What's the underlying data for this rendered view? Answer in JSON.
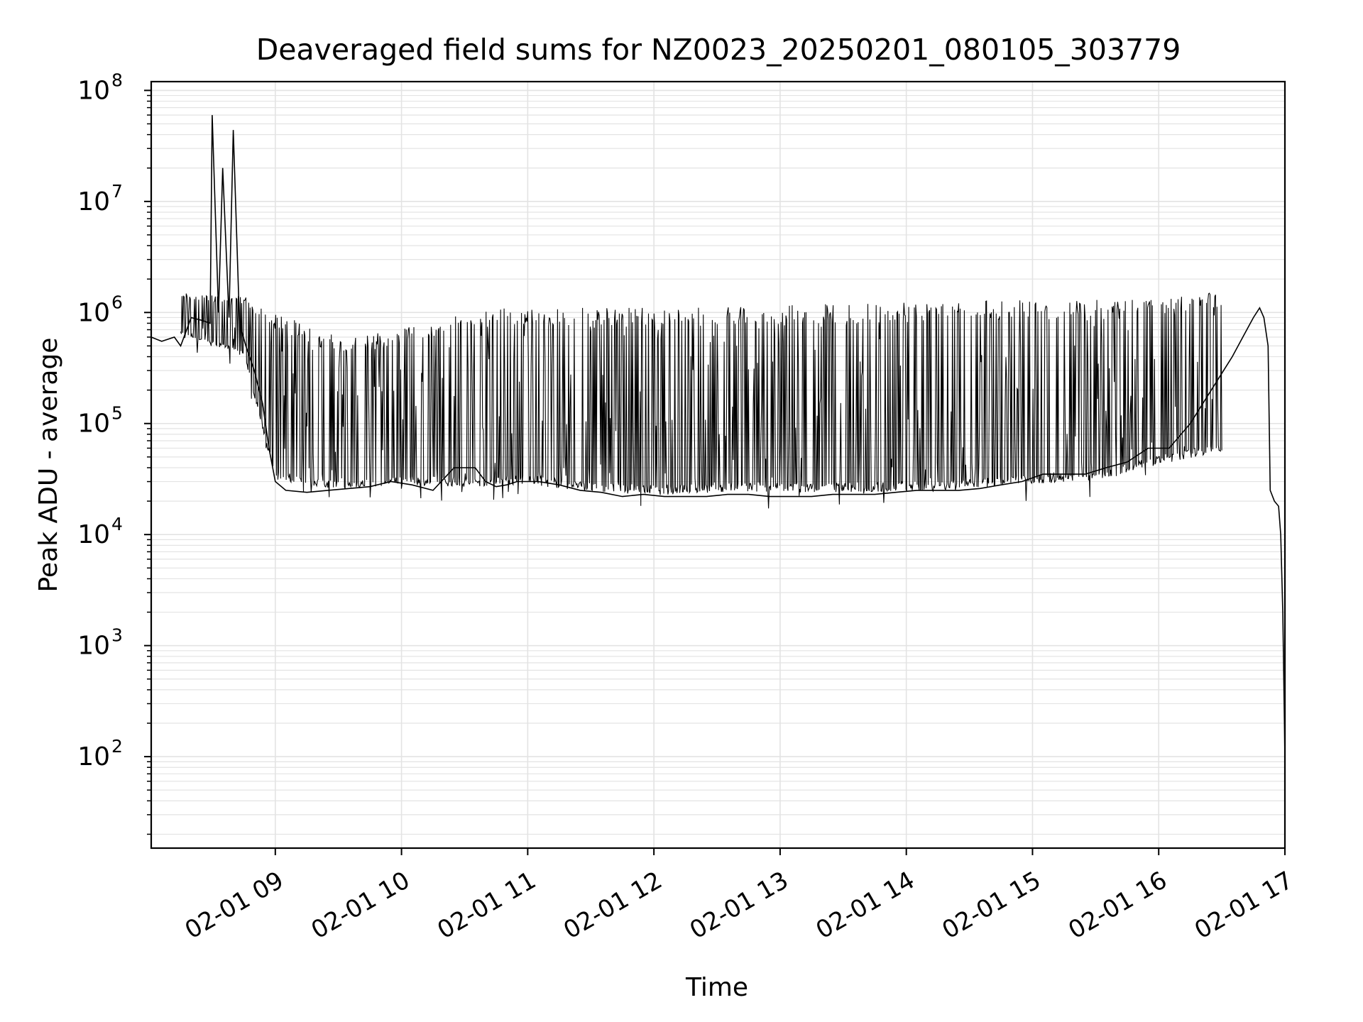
{
  "chart_data": {
    "type": "line",
    "title": "Deaveraged field sums for NZ0023_20250201_080105_303779",
    "xlabel": "Time",
    "ylabel": "Peak ADU - average",
    "yscale": "log",
    "xlim": [
      "2025-02-01 08:01",
      "2025-02-01 17:00"
    ],
    "ylim": [
      15,
      120000000
    ],
    "xticks": [
      "2025-02-01 09:00",
      "2025-02-01 10:00",
      "2025-02-01 11:00",
      "2025-02-01 12:00",
      "2025-02-01 13:00",
      "2025-02-01 14:00",
      "2025-02-01 15:00",
      "2025-02-01 16:00",
      "2025-02-01 17:00"
    ],
    "xtick_labels": [
      "02-01 09",
      "02-01 10",
      "02-01 11",
      "02-01 12",
      "02-01 13",
      "02-01 14",
      "02-01 15",
      "02-01 16",
      "02-01 17"
    ],
    "yticks": [
      100,
      1000,
      10000,
      100000,
      1000000,
      10000000,
      100000000
    ],
    "ytick_exponents": [
      "2",
      "3",
      "4",
      "5",
      "6",
      "7",
      "8"
    ],
    "ytick_base": "10",
    "grid": true,
    "legend": "none",
    "line_color": "#000000",
    "grid_color": "#e3e3e3",
    "series": [
      {
        "x": [
          "2025-02-01 08:01",
          "2025-02-01 08:06",
          "2025-02-01 08:12",
          "2025-02-01 08:15",
          "2025-02-01 08:20",
          "2025-02-01 08:25",
          "2025-02-01 08:29",
          "2025-02-01 08:30",
          "2025-02-01 08:33",
          "2025-02-01 08:35",
          "2025-02-01 08:38",
          "2025-02-01 08:40",
          "2025-02-01 08:43",
          "2025-02-01 08:46",
          "2025-02-01 08:50",
          "2025-02-01 08:54",
          "2025-02-01 08:57",
          "2025-02-01 09:00",
          "2025-02-01 09:05",
          "2025-02-01 09:15",
          "2025-02-01 09:25",
          "2025-02-01 09:35",
          "2025-02-01 09:45",
          "2025-02-01 09:55",
          "2025-02-01 10:05",
          "2025-02-01 10:15",
          "2025-02-01 10:25",
          "2025-02-01 10:35",
          "2025-02-01 10:40",
          "2025-02-01 10:45",
          "2025-02-01 10:50",
          "2025-02-01 10:55",
          "2025-02-01 11:05",
          "2025-02-01 11:15",
          "2025-02-01 11:25",
          "2025-02-01 11:35",
          "2025-02-01 11:45",
          "2025-02-01 11:55",
          "2025-02-01 12:05",
          "2025-02-01 12:15",
          "2025-02-01 12:25",
          "2025-02-01 12:35",
          "2025-02-01 12:45",
          "2025-02-01 12:55",
          "2025-02-01 13:05",
          "2025-02-01 13:15",
          "2025-02-01 13:25",
          "2025-02-01 13:35",
          "2025-02-01 13:45",
          "2025-02-01 13:55",
          "2025-02-01 14:05",
          "2025-02-01 14:15",
          "2025-02-01 14:25",
          "2025-02-01 14:35",
          "2025-02-01 14:45",
          "2025-02-01 14:55",
          "2025-02-01 15:05",
          "2025-02-01 15:15",
          "2025-02-01 15:25",
          "2025-02-01 15:35",
          "2025-02-01 15:45",
          "2025-02-01 15:55",
          "2025-02-01 16:05",
          "2025-02-01 16:15",
          "2025-02-01 16:25",
          "2025-02-01 16:35",
          "2025-02-01 16:40",
          "2025-02-01 16:45",
          "2025-02-01 16:48",
          "2025-02-01 16:50",
          "2025-02-01 16:52",
          "2025-02-01 16:53",
          "2025-02-01 16:55",
          "2025-02-01 16:57",
          "2025-02-01 16:58",
          "2025-02-01 16:59",
          "2025-02-01 17:00"
        ],
        "y": [
          600000,
          550000,
          600000,
          500000,
          900000,
          850000,
          800000,
          60000000,
          1000000,
          20000000,
          900000,
          44000000,
          800000,
          500000,
          300000,
          150000,
          60000,
          30000,
          25000,
          24000,
          25000,
          26000,
          27000,
          30000,
          28000,
          25000,
          40000,
          40000,
          30000,
          27000,
          28000,
          30000,
          30000,
          28000,
          25000,
          24000,
          22000,
          23000,
          22000,
          22000,
          22000,
          23000,
          23000,
          22000,
          22000,
          22000,
          23000,
          23000,
          23000,
          24000,
          25000,
          25000,
          25000,
          26000,
          28000,
          30000,
          35000,
          35000,
          35000,
          40000,
          45000,
          60000,
          60000,
          100000,
          200000,
          400000,
          600000,
          900000,
          1100000,
          900000,
          500000,
          25000,
          20000,
          18000,
          10000,
          2000,
          100
        ]
      }
    ],
    "series_envelope": {
      "x": [
        "2025-02-01 08:15",
        "2025-02-01 08:45",
        "2025-02-01 09:00",
        "2025-02-01 09:30",
        "2025-02-01 10:00",
        "2025-02-01 10:30",
        "2025-02-01 11:00",
        "2025-02-01 11:30",
        "2025-02-01 12:00",
        "2025-02-01 12:30",
        "2025-02-01 13:00",
        "2025-02-01 13:30",
        "2025-02-01 14:00",
        "2025-02-01 14:30",
        "2025-02-01 15:00",
        "2025-02-01 15:30",
        "2025-02-01 16:00",
        "2025-02-01 16:30"
      ],
      "low": [
        450000,
        300000,
        22000,
        18000,
        20000,
        19000,
        20000,
        17000,
        16000,
        17000,
        17000,
        17000,
        17000,
        18000,
        20000,
        22000,
        30000,
        40000
      ],
      "high": [
        1500000,
        1400000,
        1000000,
        600000,
        700000,
        1100000,
        1100000,
        1100000,
        1100000,
        1200000,
        1200000,
        1200000,
        1250000,
        1300000,
        1300000,
        1300000,
        1300000,
        1600000
      ]
    }
  }
}
